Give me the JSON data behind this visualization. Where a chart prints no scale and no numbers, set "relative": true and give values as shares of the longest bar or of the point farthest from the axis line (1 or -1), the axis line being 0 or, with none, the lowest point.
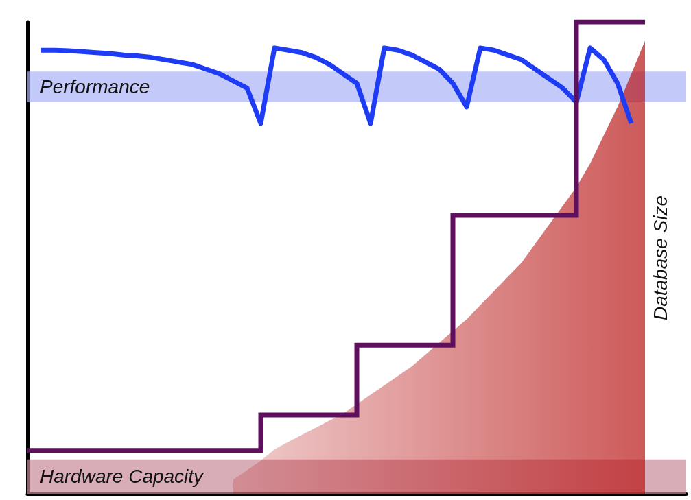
{
  "chart_data": {
    "type": "line",
    "relative": true,
    "categories": [
      null,
      null,
      null,
      null,
      null,
      null,
      null,
      null,
      null,
      null,
      null,
      null,
      null,
      null,
      null,
      null,
      null,
      null,
      null,
      null,
      null,
      null,
      null,
      null,
      null,
      null,
      null,
      null,
      null,
      null,
      null,
      null,
      null,
      null,
      null,
      null,
      null,
      null,
      null,
      null,
      null,
      null,
      null,
      null,
      null,
      null,
      null,
      null,
      null
    ],
    "series": [
      {
        "color": "#1f3cf5",
        "values": [
          null,
          0.94,
          0.94,
          0.939,
          0.937,
          0.935,
          0.933,
          0.93,
          0.928,
          0.925,
          0.92,
          0.915,
          0.91,
          0.9,
          0.89,
          0.875,
          0.86,
          0.785,
          0.945,
          0.94,
          0.935,
          0.925,
          0.91,
          0.89,
          0.87,
          0.785,
          0.945,
          0.94,
          0.93,
          0.915,
          0.9,
          0.87,
          0.82,
          0.945,
          0.94,
          0.93,
          0.92,
          0.9,
          0.88,
          0.86,
          0.83,
          0.945,
          0.92,
          0.87,
          0.785,
          null,
          null,
          null,
          null
        ]
      },
      {
        "type": "step",
        "color": "#5e0f5e",
        "values": [
          0.092,
          0.092,
          0.092,
          0.092,
          0.092,
          0.092,
          0.092,
          0.092,
          0.092,
          0.092,
          0.092,
          0.092,
          0.092,
          0.092,
          0.092,
          0.092,
          0.092,
          0.092,
          0.167,
          0.167,
          0.167,
          0.167,
          0.167,
          0.167,
          0.167,
          0.315,
          0.315,
          0.315,
          0.315,
          0.315,
          0.315,
          0.315,
          0.59,
          0.59,
          0.59,
          0.59,
          0.59,
          0.59,
          0.59,
          0.59,
          0.59,
          1.0,
          1.0,
          1.0,
          1.0,
          1.0,
          null,
          null,
          null
        ]
      },
      {
        "type": "area",
        "name": "Database Size",
        "color": "#b81414",
        "values": [
          null,
          null,
          null,
          null,
          null,
          null,
          null,
          null,
          null,
          null,
          null,
          null,
          null,
          null,
          null,
          0.03,
          0.05,
          0.07,
          0.094,
          0.11,
          0.125,
          0.14,
          0.155,
          0.17,
          0.19,
          0.21,
          0.23,
          0.25,
          0.27,
          0.295,
          0.32,
          0.345,
          0.37,
          0.4,
          0.43,
          0.46,
          0.49,
          0.53,
          0.57,
          0.61,
          0.65,
          0.7,
          0.76,
          0.82,
          0.89,
          0.96,
          null,
          null,
          null
        ]
      }
    ],
    "bands": [
      {
        "axis": "y",
        "from": 0.83,
        "to": 0.895,
        "label": "Performance",
        "color": "#a9b2f5"
      },
      {
        "axis": "y",
        "from": 0.0,
        "to": 0.073,
        "label": "Hardware Capacity",
        "color": "#c98a98"
      }
    ],
    "legend": false,
    "grid": false,
    "marker": "none",
    "line_style": "solid",
    "tick_labels": false
  }
}
